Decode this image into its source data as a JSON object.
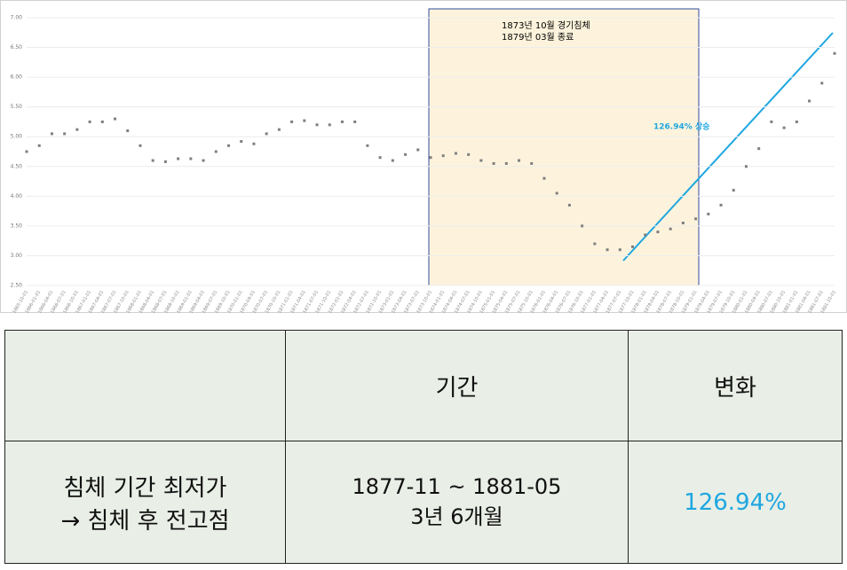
{
  "chart_data": {
    "type": "scatter",
    "annotation": [
      "1873년 10월 경기침체",
      "1879년 03월 종료"
    ],
    "trend_label": "126.94% 상승",
    "color": "#7f7f7f",
    "ylim": [
      2.5,
      7.0
    ],
    "yticks": [
      {
        "value": 2.5,
        "label": "2.50"
      },
      {
        "value": 3,
        "label": "3.00"
      },
      {
        "value": 3.5,
        "label": "3.50"
      },
      {
        "value": 4,
        "label": "4.00"
      },
      {
        "value": 4.5,
        "label": "4.50"
      },
      {
        "value": 5,
        "label": "5.00"
      },
      {
        "value": 5.5,
        "label": "5.50"
      },
      {
        "value": 6,
        "label": "6.00"
      },
      {
        "value": 6.5,
        "label": "6.50"
      },
      {
        "value": 7,
        "label": "7.00"
      }
    ],
    "grid": true,
    "categories": [
      "1865-10-01",
      "1866-01-01",
      "1866-04-01",
      "1866-07-01",
      "1866-10-01",
      "1867-01-01",
      "1867-04-01",
      "1867-07-01",
      "1867-10-01",
      "1868-01-01",
      "1868-04-01",
      "1868-07-01",
      "1868-10-01",
      "1869-01-01",
      "1869-04-01",
      "1869-07-01",
      "1869-10-01",
      "1870-01-01",
      "1870-04-01",
      "1870-07-01",
      "1870-10-01",
      "1871-01-01",
      "1871-04-01",
      "1871-07-01",
      "1871-10-01",
      "1872-01-01",
      "1872-04-01",
      "1872-07-01",
      "1872-10-01",
      "1873-01-01",
      "1873-04-01",
      "1873-07-01",
      "1873-10-01",
      "1874-01-01",
      "1874-04-01",
      "1874-07-01",
      "1874-10-01",
      "1875-01-01",
      "1875-04-01",
      "1875-07-01",
      "1875-10-01",
      "1876-01-01",
      "1876-04-01",
      "1876-07-01",
      "1876-10-01",
      "1877-01-01",
      "1877-04-01",
      "1877-07-01",
      "1877-10-01",
      "1878-01-01",
      "1878-04-01",
      "1878-07-01",
      "1878-10-01",
      "1879-01-01",
      "1879-04-01",
      "1879-07-01",
      "1879-10-01",
      "1880-01-01",
      "1880-04-01",
      "1880-07-01",
      "1880-10-01",
      "1881-01-01",
      "1881-04-01",
      "1881-07-01",
      "1881-10-01"
    ],
    "values": [
      4.75,
      4.85,
      5.05,
      5.05,
      5.12,
      5.25,
      5.25,
      5.3,
      5.1,
      4.85,
      4.6,
      4.58,
      4.63,
      4.63,
      4.6,
      4.75,
      4.85,
      4.92,
      4.88,
      5.05,
      5.12,
      5.25,
      5.27,
      5.2,
      5.2,
      5.25,
      5.25,
      4.85,
      4.65,
      4.6,
      4.7,
      4.78,
      4.65,
      4.68,
      4.72,
      4.7,
      4.6,
      4.55,
      4.55,
      4.6,
      4.55,
      4.3,
      4.05,
      3.85,
      3.5,
      3.2,
      3.1,
      3.1,
      3.15,
      3.35,
      3.4,
      3.45,
      3.55,
      3.62,
      3.7,
      3.85,
      4.1,
      4.5,
      4.8,
      5.25,
      5.15,
      5.25,
      5.6,
      5.9,
      6.4
    ]
  },
  "table": {
    "header": [
      "기간",
      "변화"
    ],
    "row": {
      "label_lines": [
        "침체 기간 최저가",
        "→ 침체 후 전고점"
      ],
      "period_lines": [
        "1877-11 ~ 1881-05",
        "3년 6개월"
      ],
      "change": "126.94%"
    }
  }
}
